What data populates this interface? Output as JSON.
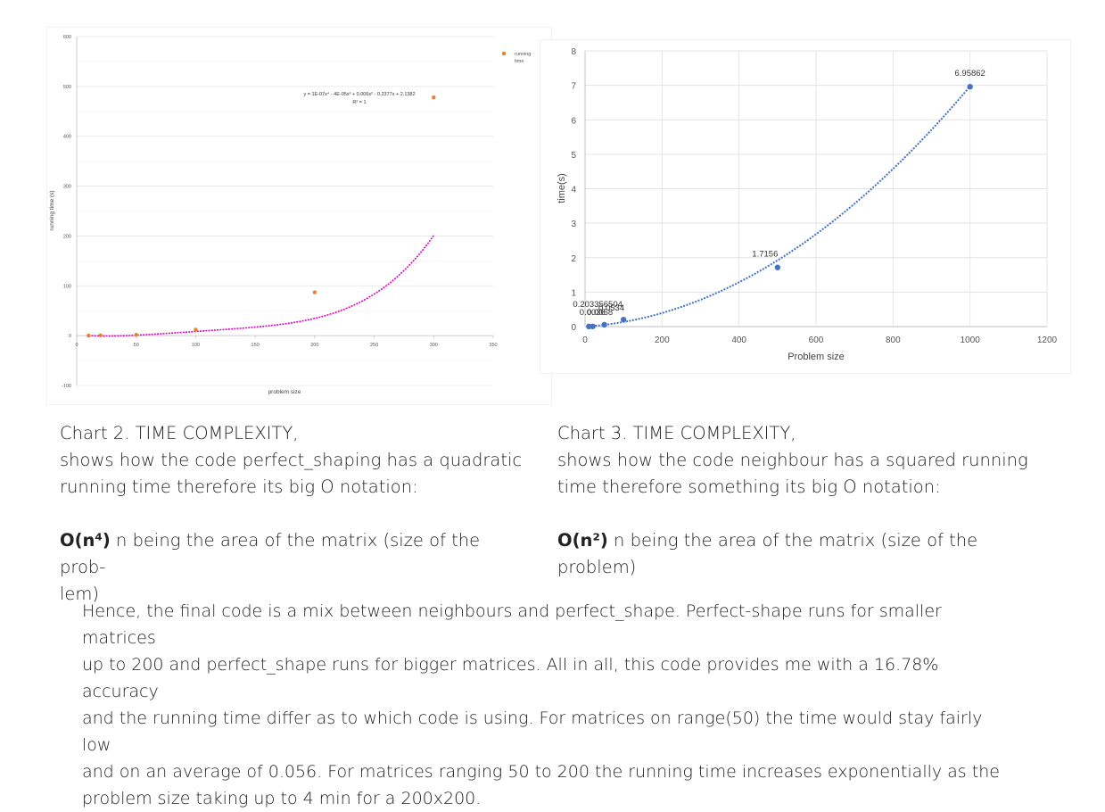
{
  "chart_data": [
    {
      "type": "scatter",
      "xlabel": "problem size",
      "ylabel": "running time (s)",
      "xlim": [
        0,
        350
      ],
      "ylim": [
        -100,
        600
      ],
      "x_ticks": [
        "0",
        "50",
        "100",
        "150",
        "200",
        "250",
        "300",
        "350"
      ],
      "y_ticks": [
        "-100",
        "0",
        "100",
        "200",
        "300",
        "400",
        "500",
        "600"
      ],
      "grid": true,
      "legend_position": "top-right",
      "series": [
        {
          "name": "running time",
          "color": "#ed7d31",
          "x": [
            10,
            20,
            50,
            100,
            200,
            300
          ],
          "y": [
            0.2,
            0.5,
            1.7,
            12,
            87,
            478
          ]
        }
      ],
      "trendline": {
        "type": "polynomial",
        "color": "#e000c0",
        "coefficients": [
          2.1382,
          -0.2377,
          0.006,
          -4e-05,
          1e-07
        ],
        "equation": "y = 1E-07x⁴ - 4E-05x³ + 0.006x² - 0.2377x + 2.1382",
        "r2": "R² = 1"
      }
    },
    {
      "type": "scatter",
      "xlabel": "Problem size",
      "ylabel": "time(s)",
      "xlim": [
        0,
        1200
      ],
      "ylim": [
        0,
        8
      ],
      "x_ticks": [
        "0",
        "200",
        "400",
        "600",
        "800",
        "1000",
        "1200"
      ],
      "y_ticks": [
        "0",
        "1",
        "2",
        "3",
        "4",
        "5",
        "6",
        "7",
        "8"
      ],
      "grid": true,
      "series": [
        {
          "color": "#4472c4",
          "x": [
            10,
            20,
            50,
            100,
            500,
            1000
          ],
          "y": [
            0.0036,
            0.0058,
            0.0534,
            0.203356504,
            1.7156,
            6.95862
          ],
          "labels": [
            "0.0036",
            "0.0058",
            "0.0534",
            "0.203356504",
            "1.7156",
            "6.95862"
          ]
        }
      ],
      "trendline": {
        "type": "polynomial",
        "color": "#4472c4",
        "coefficients": [
          0.0,
          0.000715,
          6.2557e-06
        ]
      }
    }
  ],
  "captions": {
    "chart2": {
      "title": "Chart 2. TIME COMPLEXITY,",
      "line1": "shows how the code perfect_shaping has a quadratic",
      "line2": "running time therefore its big O notation:",
      "notation": "O(n⁴)",
      "desc1": " n being the area of the matrix (size of the prob-",
      "desc2": "lem)"
    },
    "chart3": {
      "title": "Chart 3. TIME COMPLEXITY,",
      "line1": "shows how the code neighbour has a squared running",
      "line2": "time therefore something its big O notation:",
      "notation": "O(n²)",
      "desc1": " n being the area of the matrix (size of the problem)"
    }
  },
  "conclusion": [
    "Hence, the final code is a mix between neighbours and perfect_shape. Perfect-shape runs for smaller matrices",
    "up to 200 and perfect_shape runs for bigger matrices. All in all, this code provides me with a 16.78% accuracy",
    "and the running time differ as to which code is using. For matrices on range(50) the time would stay fairly low",
    "and on an average of 0.056.  For matrices ranging 50 to 200 the running time increases exponentially as the",
    "problem size taking up to 4 min for a 200x200."
  ]
}
